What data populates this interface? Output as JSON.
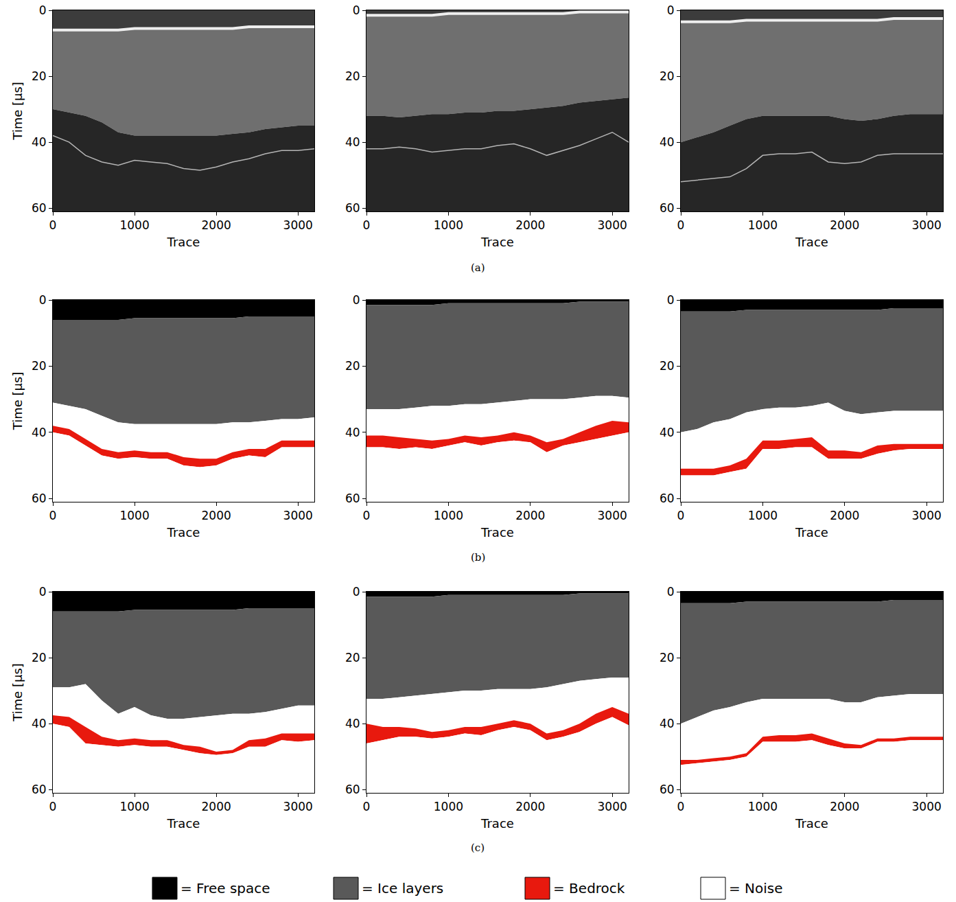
{
  "chart_data": [
    {
      "type": "radargram",
      "xlabel": "Trace",
      "ylabel": "Time [µs]",
      "xlim": [
        0,
        3200
      ],
      "ylim": [
        61,
        0
      ],
      "xticks": [
        0,
        1000,
        2000,
        3000
      ],
      "yticks": [
        0,
        20,
        40,
        60
      ],
      "x": [
        0,
        200,
        400,
        600,
        800,
        1000,
        1200,
        1400,
        1600,
        1800,
        2000,
        2200,
        2400,
        2600,
        2800,
        3000,
        3200
      ],
      "surface": [
        6,
        6,
        6,
        6,
        6,
        5.5,
        5.5,
        5.5,
        5.5,
        5.5,
        5.5,
        5.5,
        5,
        5,
        5,
        5,
        5
      ],
      "ice_bottom": [
        30,
        31,
        32,
        34,
        37,
        38,
        38,
        38,
        38,
        38,
        38,
        37.5,
        37,
        36,
        35.5,
        35,
        35
      ],
      "bedrock": [
        38,
        40,
        44,
        46,
        47,
        45.5,
        46,
        46.5,
        48,
        48.5,
        47.5,
        46,
        45,
        43.5,
        42.5,
        42.5,
        42
      ]
    },
    {
      "type": "radargram",
      "xlabel": "Trace",
      "xlim": [
        0,
        3200
      ],
      "ylim": [
        61,
        0
      ],
      "xticks": [
        0,
        1000,
        2000,
        3000
      ],
      "yticks": [
        0,
        20,
        40,
        60
      ],
      "x": [
        0,
        200,
        400,
        600,
        800,
        1000,
        1200,
        1400,
        1600,
        1800,
        2000,
        2200,
        2400,
        2600,
        2800,
        3000,
        3200
      ],
      "surface": [
        1.5,
        1.5,
        1.5,
        1.5,
        1.5,
        1,
        1,
        1,
        1,
        1,
        1,
        1,
        1,
        0.5,
        0.5,
        0.5,
        0.5
      ],
      "ice_bottom": [
        32,
        32,
        32.5,
        32,
        31.5,
        31.5,
        31,
        31,
        30.5,
        30.5,
        30,
        29.5,
        29,
        28,
        27.5,
        27,
        26.5
      ],
      "bedrock": [
        42,
        42,
        41.5,
        42,
        43,
        42.5,
        42,
        42,
        41,
        40.5,
        42,
        44,
        42.5,
        41,
        39,
        37,
        40
      ]
    },
    {
      "type": "radargram",
      "xlabel": "Trace",
      "xlim": [
        0,
        3200
      ],
      "ylim": [
        61,
        0
      ],
      "xticks": [
        0,
        1000,
        2000,
        3000
      ],
      "yticks": [
        0,
        20,
        40,
        60
      ],
      "x": [
        0,
        200,
        400,
        600,
        800,
        1000,
        1200,
        1400,
        1600,
        1800,
        2000,
        2200,
        2400,
        2600,
        2800,
        3000,
        3200
      ],
      "surface": [
        3.5,
        3.5,
        3.5,
        3.5,
        3,
        3,
        3,
        3,
        3,
        3,
        3,
        3,
        3,
        2.5,
        2.5,
        2.5,
        2.5
      ],
      "ice_bottom": [
        40,
        38.5,
        37,
        35,
        33,
        32,
        32,
        32,
        32,
        32,
        33,
        33.5,
        33,
        32,
        31.5,
        31.5,
        31.5
      ],
      "bedrock": [
        52,
        51.5,
        51,
        50.5,
        48,
        44,
        43.5,
        43.5,
        43,
        46,
        46.5,
        46,
        44,
        43.5,
        43.5,
        43.5,
        43.5
      ]
    },
    {
      "type": "segmentation",
      "xlabel": "Trace",
      "ylabel": "Time [µs]",
      "xlim": [
        0,
        3200
      ],
      "ylim": [
        61,
        0
      ],
      "xticks": [
        0,
        1000,
        2000,
        3000
      ],
      "yticks": [
        0,
        20,
        40,
        60
      ],
      "x": [
        0,
        200,
        400,
        600,
        800,
        1000,
        1200,
        1400,
        1600,
        1800,
        2000,
        2200,
        2400,
        2600,
        2800,
        3000,
        3200
      ],
      "surface": [
        6,
        6,
        6,
        6,
        6,
        5.5,
        5.5,
        5.5,
        5.5,
        5.5,
        5.5,
        5.5,
        5,
        5,
        5,
        5,
        5
      ],
      "ice_bottom": [
        31,
        32,
        33,
        35,
        37,
        37.5,
        37.5,
        37.5,
        37.5,
        37.5,
        37.5,
        37,
        37,
        36.5,
        36,
        36,
        35.5
      ],
      "bedrock_top": [
        38,
        39,
        42,
        45,
        46,
        45.5,
        46,
        46,
        47.5,
        48,
        48,
        46,
        45,
        45,
        42.5,
        42.5,
        42.5
      ],
      "bedrock_bottom": [
        40,
        41,
        44,
        47,
        48,
        47.5,
        48,
        48,
        50,
        50.5,
        50,
        48,
        47,
        47.5,
        44.5,
        44.5,
        44.5
      ]
    },
    {
      "type": "segmentation",
      "xlabel": "Trace",
      "xlim": [
        0,
        3200
      ],
      "ylim": [
        61,
        0
      ],
      "xticks": [
        0,
        1000,
        2000,
        3000
      ],
      "yticks": [
        0,
        20,
        40,
        60
      ],
      "x": [
        0,
        200,
        400,
        600,
        800,
        1000,
        1200,
        1400,
        1600,
        1800,
        2000,
        2200,
        2400,
        2600,
        2800,
        3000,
        3200
      ],
      "surface": [
        1.5,
        1.5,
        1.5,
        1.5,
        1.5,
        1,
        1,
        1,
        1,
        1,
        1,
        1,
        1,
        0.5,
        0.5,
        0.5,
        0.5
      ],
      "ice_bottom": [
        33,
        33,
        33,
        32.5,
        32,
        32,
        31.5,
        31.5,
        31,
        30.5,
        30,
        30,
        30,
        29.5,
        29,
        29,
        29.5
      ],
      "bedrock_top": [
        41,
        41,
        41.5,
        42,
        42.5,
        42,
        41,
        41.5,
        41,
        40,
        41,
        43,
        42,
        40,
        38,
        36.5,
        37
      ],
      "bedrock_bottom": [
        44.5,
        44.5,
        45,
        44.5,
        45,
        44,
        43,
        44,
        43,
        42.5,
        43,
        46,
        44,
        43,
        42,
        41,
        40
      ]
    },
    {
      "type": "segmentation",
      "xlabel": "Trace",
      "xlim": [
        0,
        3200
      ],
      "ylim": [
        61,
        0
      ],
      "xticks": [
        0,
        1000,
        2000,
        3000
      ],
      "yticks": [
        0,
        20,
        40,
        60
      ],
      "x": [
        0,
        200,
        400,
        600,
        800,
        1000,
        1200,
        1400,
        1600,
        1800,
        2000,
        2200,
        2400,
        2600,
        2800,
        3000,
        3200
      ],
      "surface": [
        3.5,
        3.5,
        3.5,
        3.5,
        3,
        3,
        3,
        3,
        3,
        3,
        3,
        3,
        3,
        2.5,
        2.5,
        2.5,
        2.5
      ],
      "ice_bottom": [
        40,
        39,
        37,
        36,
        34,
        33,
        32.5,
        32.5,
        32,
        31,
        33.5,
        34.5,
        34,
        33.5,
        33.5,
        33.5,
        33.5
      ],
      "bedrock_top": [
        51,
        51,
        51,
        50,
        48,
        42.5,
        42.5,
        42,
        41.5,
        45.5,
        45.5,
        46,
        44,
        43.5,
        43.5,
        43.5,
        43.5
      ],
      "bedrock_bottom": [
        53,
        53,
        53,
        52,
        51,
        45,
        45,
        44.5,
        44.5,
        48,
        48,
        48,
        46.5,
        45.5,
        45,
        45,
        45
      ]
    },
    {
      "type": "segmentation",
      "xlabel": "Trace",
      "ylabel": "Time [µs]",
      "xlim": [
        0,
        3200
      ],
      "ylim": [
        61,
        0
      ],
      "xticks": [
        0,
        1000,
        2000,
        3000
      ],
      "yticks": [
        0,
        20,
        40,
        60
      ],
      "x": [
        0,
        200,
        400,
        600,
        800,
        1000,
        1200,
        1400,
        1600,
        1800,
        2000,
        2200,
        2400,
        2600,
        2800,
        3000,
        3200
      ],
      "surface": [
        6,
        6,
        6,
        6,
        6,
        5.5,
        5.5,
        5.5,
        5.5,
        5.5,
        5.5,
        5.5,
        5,
        5,
        5,
        5,
        5
      ],
      "ice_bottom": [
        29,
        29,
        28,
        33,
        37,
        35,
        37.5,
        38.5,
        38.5,
        38,
        37.5,
        37,
        37,
        36.5,
        35.5,
        34.5,
        34.5
      ],
      "bedrock_top": [
        37.5,
        38,
        41,
        44,
        45,
        44.5,
        45,
        45,
        46.5,
        47,
        48.5,
        48,
        45,
        44.5,
        43,
        43,
        43
      ],
      "bedrock_bottom": [
        40,
        41,
        46,
        46.5,
        47,
        46.5,
        47,
        47,
        48,
        49,
        49.5,
        49,
        47,
        47,
        45,
        45.5,
        45
      ]
    },
    {
      "type": "segmentation",
      "xlabel": "Trace",
      "xlim": [
        0,
        3200
      ],
      "ylim": [
        61,
        0
      ],
      "xticks": [
        0,
        1000,
        2000,
        3000
      ],
      "yticks": [
        0,
        20,
        40,
        60
      ],
      "x": [
        0,
        200,
        400,
        600,
        800,
        1000,
        1200,
        1400,
        1600,
        1800,
        2000,
        2200,
        2400,
        2600,
        2800,
        3000,
        3200
      ],
      "surface": [
        1.5,
        1.5,
        1.5,
        1.5,
        1.5,
        1,
        1,
        1,
        1,
        1,
        1,
        1,
        1,
        0.5,
        0.5,
        0.5,
        0.5
      ],
      "ice_bottom": [
        32.5,
        32.5,
        32,
        31.5,
        31,
        30.5,
        30,
        30,
        29.5,
        29.5,
        29.5,
        29,
        28,
        27,
        26.5,
        26,
        26
      ],
      "bedrock_top": [
        40,
        41,
        41,
        41.5,
        42.5,
        42,
        41,
        41,
        40,
        39,
        40,
        43,
        42,
        40,
        37,
        35,
        37
      ],
      "bedrock_bottom": [
        46,
        45,
        44,
        44,
        44.5,
        44,
        43,
        43.5,
        42,
        41,
        42,
        45,
        44,
        42.5,
        40,
        38,
        40.5
      ]
    },
    {
      "type": "segmentation",
      "xlabel": "Trace",
      "xlim": [
        0,
        3200
      ],
      "ylim": [
        61,
        0
      ],
      "xticks": [
        0,
        1000,
        2000,
        3000
      ],
      "yticks": [
        0,
        20,
        40,
        60
      ],
      "x": [
        0,
        200,
        400,
        600,
        800,
        1000,
        1200,
        1400,
        1600,
        1800,
        2000,
        2200,
        2400,
        2600,
        2800,
        3000,
        3200
      ],
      "surface": [
        3.5,
        3.5,
        3.5,
        3.5,
        3,
        3,
        3,
        3,
        3,
        3,
        3,
        3,
        3,
        2.5,
        2.5,
        2.5,
        2.5
      ],
      "ice_bottom": [
        40,
        38,
        36,
        35,
        33.5,
        32.5,
        32.5,
        32.5,
        32.5,
        32.5,
        33.5,
        33.5,
        32,
        31.5,
        31,
        31,
        31
      ],
      "bedrock_top": [
        51,
        51,
        50.5,
        50,
        49,
        44,
        43.5,
        43.5,
        43,
        44.5,
        46,
        46.5,
        44.5,
        44.5,
        44,
        44,
        44
      ],
      "bedrock_bottom": [
        52.5,
        52,
        51.5,
        51,
        50,
        45.5,
        45.5,
        45.5,
        45,
        46.5,
        47.5,
        47.5,
        45.5,
        45.5,
        45,
        45,
        45
      ]
    }
  ],
  "row_labels": [
    "(a)",
    "(b)",
    "(c)"
  ],
  "classes": [
    {
      "name": "= Free space",
      "color": "#000000"
    },
    {
      "name": "= Ice layers",
      "color": "#595959"
    },
    {
      "name": "= Bedrock",
      "color": "#e8190e"
    },
    {
      "name": "= Noise",
      "color": "#ffffff"
    }
  ]
}
